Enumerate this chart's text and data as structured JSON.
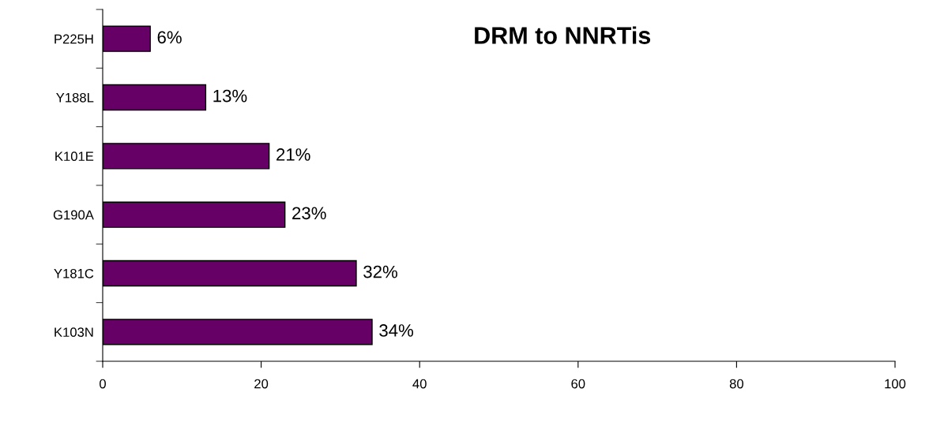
{
  "chart_data": {
    "type": "bar",
    "orientation": "horizontal",
    "title": "DRM to NNRTis",
    "categories": [
      "P225H",
      "Y188L",
      "K101E",
      "G190A",
      "Y181C",
      "K103N"
    ],
    "values": [
      6,
      13,
      21,
      23,
      32,
      34
    ],
    "value_labels": [
      "6%",
      "13%",
      "21%",
      "23%",
      "32%",
      "34%"
    ],
    "color": "#660066",
    "xlim": [
      0,
      100
    ],
    "xticks": [
      0,
      20,
      40,
      60,
      80,
      100
    ],
    "grid": false,
    "legend": false
  }
}
